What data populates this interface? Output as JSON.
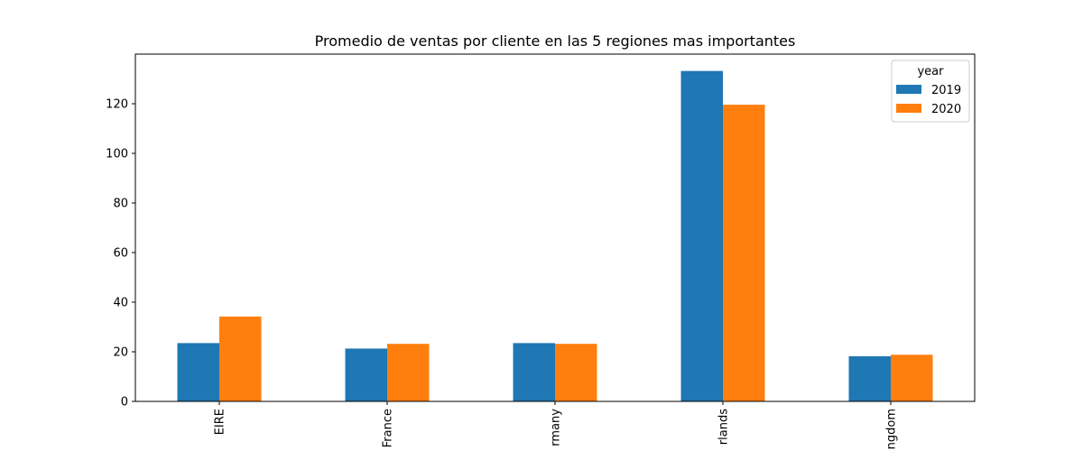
{
  "chart_data": {
    "type": "bar",
    "title": "Promedio de ventas por cliente en las 5 regiones mas importantes",
    "xlabel": "",
    "ylabel": "",
    "categories": [
      "EIRE",
      "France",
      "Germany",
      "Netherlands",
      "United Kingdom"
    ],
    "visible_category_labels": [
      "EIRE",
      "France",
      "rmany",
      "rlands",
      "ngdom"
    ],
    "series": [
      {
        "name": "2019",
        "color": "#1f77b4",
        "values": [
          23.5,
          21.3,
          23.5,
          133.2,
          18.2
        ]
      },
      {
        "name": "2020",
        "color": "#ff7f0e",
        "values": [
          34.2,
          23.2,
          23.2,
          119.6,
          18.8
        ]
      }
    ],
    "ylim": [
      0,
      140
    ],
    "yticks": [
      0,
      20,
      40,
      60,
      80,
      100,
      120
    ],
    "ytick_labels": [
      "0",
      "20",
      "40",
      "60",
      "80",
      "100",
      "120"
    ],
    "grid": false,
    "legend": {
      "title": "year",
      "placement": "top-right",
      "entries": [
        "2019",
        "2020"
      ]
    }
  }
}
